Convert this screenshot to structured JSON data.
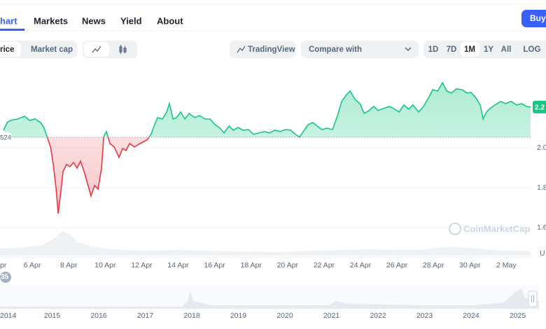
{
  "tabs": [
    "hart",
    "Markets",
    "News",
    "Yield",
    "About"
  ],
  "buy_button": "Buy",
  "toolbar": {
    "price": "rice",
    "market_cap": "Market cap",
    "tradingview": "TradingView",
    "compare": "Compare with",
    "ranges": [
      "1D",
      "7D",
      "1M",
      "1Y",
      "All",
      "LOG"
    ]
  },
  "chart_data": {
    "type": "line",
    "x": [
      4.43,
      4.62,
      4.81,
      5.19,
      5.58,
      5.85,
      6.15,
      6.46,
      6.65,
      6.81,
      7.0,
      7.15,
      7.31,
      7.42,
      7.54,
      7.69,
      7.88,
      8.07,
      8.26,
      8.46,
      8.65,
      8.84,
      9.03,
      9.22,
      9.42,
      9.61,
      9.8,
      9.92,
      10.07,
      10.26,
      10.49,
      10.76,
      10.95,
      11.14,
      11.34,
      11.6,
      11.91,
      12.3,
      12.49,
      12.68,
      12.87,
      13.14,
      13.37,
      13.52,
      13.72,
      13.91,
      14.14,
      14.37,
      14.6,
      14.91,
      15.18,
      15.48,
      15.75,
      16.02,
      16.25,
      16.52,
      16.79,
      17.02,
      17.29,
      17.56,
      17.86,
      18.13,
      18.44,
      18.74,
      19.01,
      19.32,
      19.59,
      19.9,
      20.17,
      20.43,
      20.66,
      20.86,
      21.13,
      21.39,
      21.62,
      21.89,
      22.16,
      22.47,
      22.74,
      22.97,
      23.24,
      23.43,
      23.7,
      23.97,
      24.2,
      24.47,
      24.73,
      24.96,
      25.27,
      25.58,
      25.81,
      26.12,
      26.38,
      26.65,
      26.88,
      27.19,
      27.46,
      27.73,
      27.96,
      28.23,
      28.5,
      28.73,
      29.0,
      29.26,
      29.57,
      29.84,
      30.07,
      30.34,
      30.57,
      30.72,
      30.91,
      31.11,
      31.38,
      31.68,
      31.95,
      32.26,
      32.57,
      32.83,
      33.1,
      33.33
    ],
    "values": [
      2.088,
      2.126,
      2.137,
      2.144,
      2.158,
      2.137,
      2.144,
      2.126,
      2.098,
      2.056,
      2.004,
      1.916,
      1.793,
      1.67,
      1.758,
      1.881,
      1.916,
      1.905,
      1.926,
      1.898,
      1.933,
      1.881,
      1.821,
      1.758,
      1.811,
      1.793,
      1.898,
      2.056,
      2.081,
      2.021,
      2.004,
      1.951,
      1.996,
      1.986,
      2.021,
      2.004,
      2.021,
      2.039,
      2.063,
      2.109,
      2.151,
      2.144,
      2.179,
      2.221,
      2.144,
      2.151,
      2.179,
      2.144,
      2.172,
      2.151,
      2.161,
      2.144,
      2.144,
      2.116,
      2.102,
      2.074,
      2.109,
      2.088,
      2.102,
      2.088,
      2.091,
      2.067,
      2.074,
      2.081,
      2.074,
      2.088,
      2.081,
      2.091,
      2.088,
      2.067,
      2.053,
      2.081,
      2.116,
      2.126,
      2.109,
      2.091,
      2.098,
      2.091,
      2.161,
      2.232,
      2.267,
      2.284,
      2.242,
      2.221,
      2.172,
      2.186,
      2.207,
      2.186,
      2.197,
      2.207,
      2.197,
      2.179,
      2.214,
      2.193,
      2.214,
      2.179,
      2.207,
      2.249,
      2.291,
      2.284,
      2.326,
      2.284,
      2.274,
      2.295,
      2.291,
      2.274,
      2.277,
      2.249,
      2.214,
      2.144,
      2.179,
      2.197,
      2.214,
      2.232,
      2.221,
      2.232,
      2.214,
      2.221,
      2.207,
      2.204
    ],
    "color_up": "#16c784",
    "color_down": "#ea3943",
    "baseline": 2.0524,
    "baseline_label": "524",
    "price_label": "2.2",
    "unit_label": "U",
    "watermark": "CoinMarketCap",
    "xlim": [
      4.23,
      33.33
    ],
    "ylim": [
      1.46,
      2.4
    ],
    "xticks": [
      {
        "value": 4,
        "label": "pr"
      },
      {
        "value": 6,
        "label": "6 Apr"
      },
      {
        "value": 8,
        "label": "8 Apr"
      },
      {
        "value": 10,
        "label": "10 Apr"
      },
      {
        "value": 12,
        "label": "12 Apr"
      },
      {
        "value": 14,
        "label": "14 Apr"
      },
      {
        "value": 16,
        "label": "16 Apr"
      },
      {
        "value": 18,
        "label": "18 Apr"
      },
      {
        "value": 20,
        "label": "20 Apr"
      },
      {
        "value": 22,
        "label": "22 Apr"
      },
      {
        "value": 24,
        "label": "24 Apr"
      },
      {
        "value": 26,
        "label": "26 Apr"
      },
      {
        "value": 28,
        "label": "28 Apr"
      },
      {
        "value": 30,
        "label": "30 Apr"
      },
      {
        "value": 32,
        "label": "2 May"
      }
    ],
    "yticks": [
      {
        "value": 2,
        "label": "2.0"
      },
      1.8,
      1.6
    ],
    "grid": true
  },
  "navigator": {
    "badge": "35",
    "years": [
      "2014",
      "2015",
      "2016",
      "2017",
      "2018",
      "2019",
      "2020",
      "2021",
      "2022",
      "2023",
      "2024",
      "2025"
    ]
  }
}
